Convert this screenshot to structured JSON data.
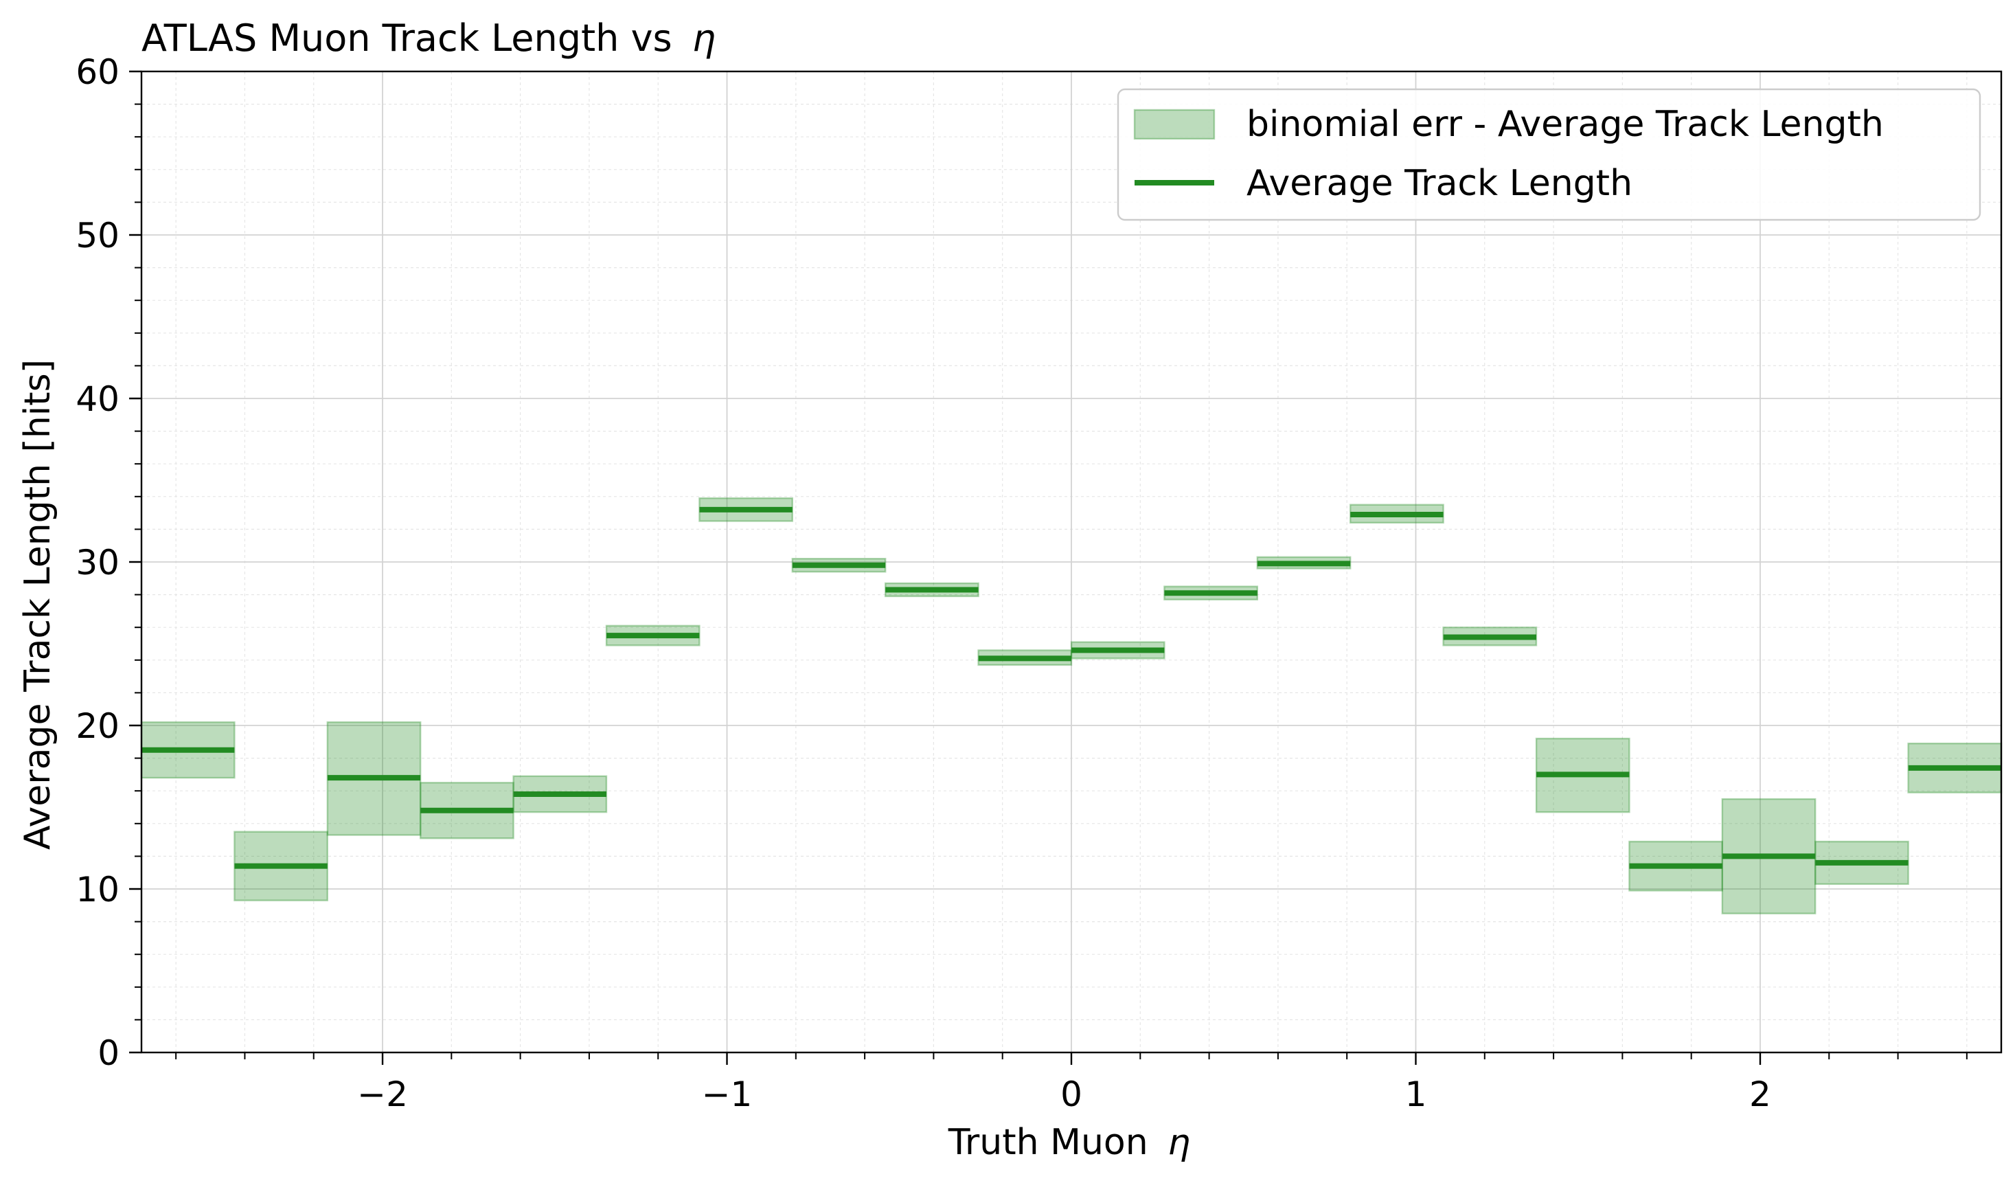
{
  "chart_data": {
    "type": "bar",
    "title": "ATLAS Muon Track Length vs",
    "title_symbol": "η",
    "xlabel": "Truth Muon",
    "xlabel_symbol": "η",
    "ylabel": "Average Track Length [hits]",
    "xlim": [
      -2.7,
      2.7
    ],
    "ylim": [
      0,
      60
    ],
    "xticks": [
      -2,
      -1,
      0,
      1,
      2
    ],
    "xtick_labels": [
      "−2",
      "−1",
      "0",
      "1",
      "2"
    ],
    "yticks": [
      0,
      10,
      20,
      30,
      40,
      50,
      60
    ],
    "ytick_labels": [
      "0",
      "10",
      "20",
      "30",
      "40",
      "50",
      "60"
    ],
    "grid": true,
    "minor_grid": true,
    "legend_position": "top-right",
    "series": [
      {
        "name": "Average Track Length",
        "color": "#228B22",
        "bin_edges": [
          -2.7,
          -2.43,
          -2.16,
          -1.89,
          -1.62,
          -1.35,
          -1.08,
          -0.81,
          -0.54,
          -0.27,
          0.0,
          0.27,
          0.54,
          0.81,
          1.08,
          1.35,
          1.62,
          1.89,
          2.16,
          2.43,
          2.7
        ],
        "values": [
          18.5,
          11.4,
          16.8,
          14.8,
          15.8,
          25.5,
          33.2,
          29.8,
          28.3,
          24.1,
          24.6,
          28.1,
          29.9,
          32.9,
          25.4,
          17.0,
          11.4,
          12.0,
          11.6,
          17.4
        ],
        "err_low": [
          16.8,
          9.3,
          13.3,
          13.1,
          14.7,
          24.9,
          32.5,
          29.4,
          27.9,
          23.7,
          24.1,
          27.7,
          29.6,
          32.4,
          24.9,
          14.7,
          9.9,
          8.5,
          10.3,
          15.9
        ],
        "err_high": [
          20.2,
          13.5,
          20.2,
          16.5,
          16.9,
          26.1,
          33.9,
          30.2,
          28.7,
          24.6,
          25.1,
          28.5,
          30.3,
          33.5,
          26.0,
          19.2,
          12.9,
          15.5,
          12.9,
          18.9
        ]
      }
    ],
    "band_series": {
      "name": "binomial err - Average Track Length",
      "color": "#228B22"
    }
  }
}
